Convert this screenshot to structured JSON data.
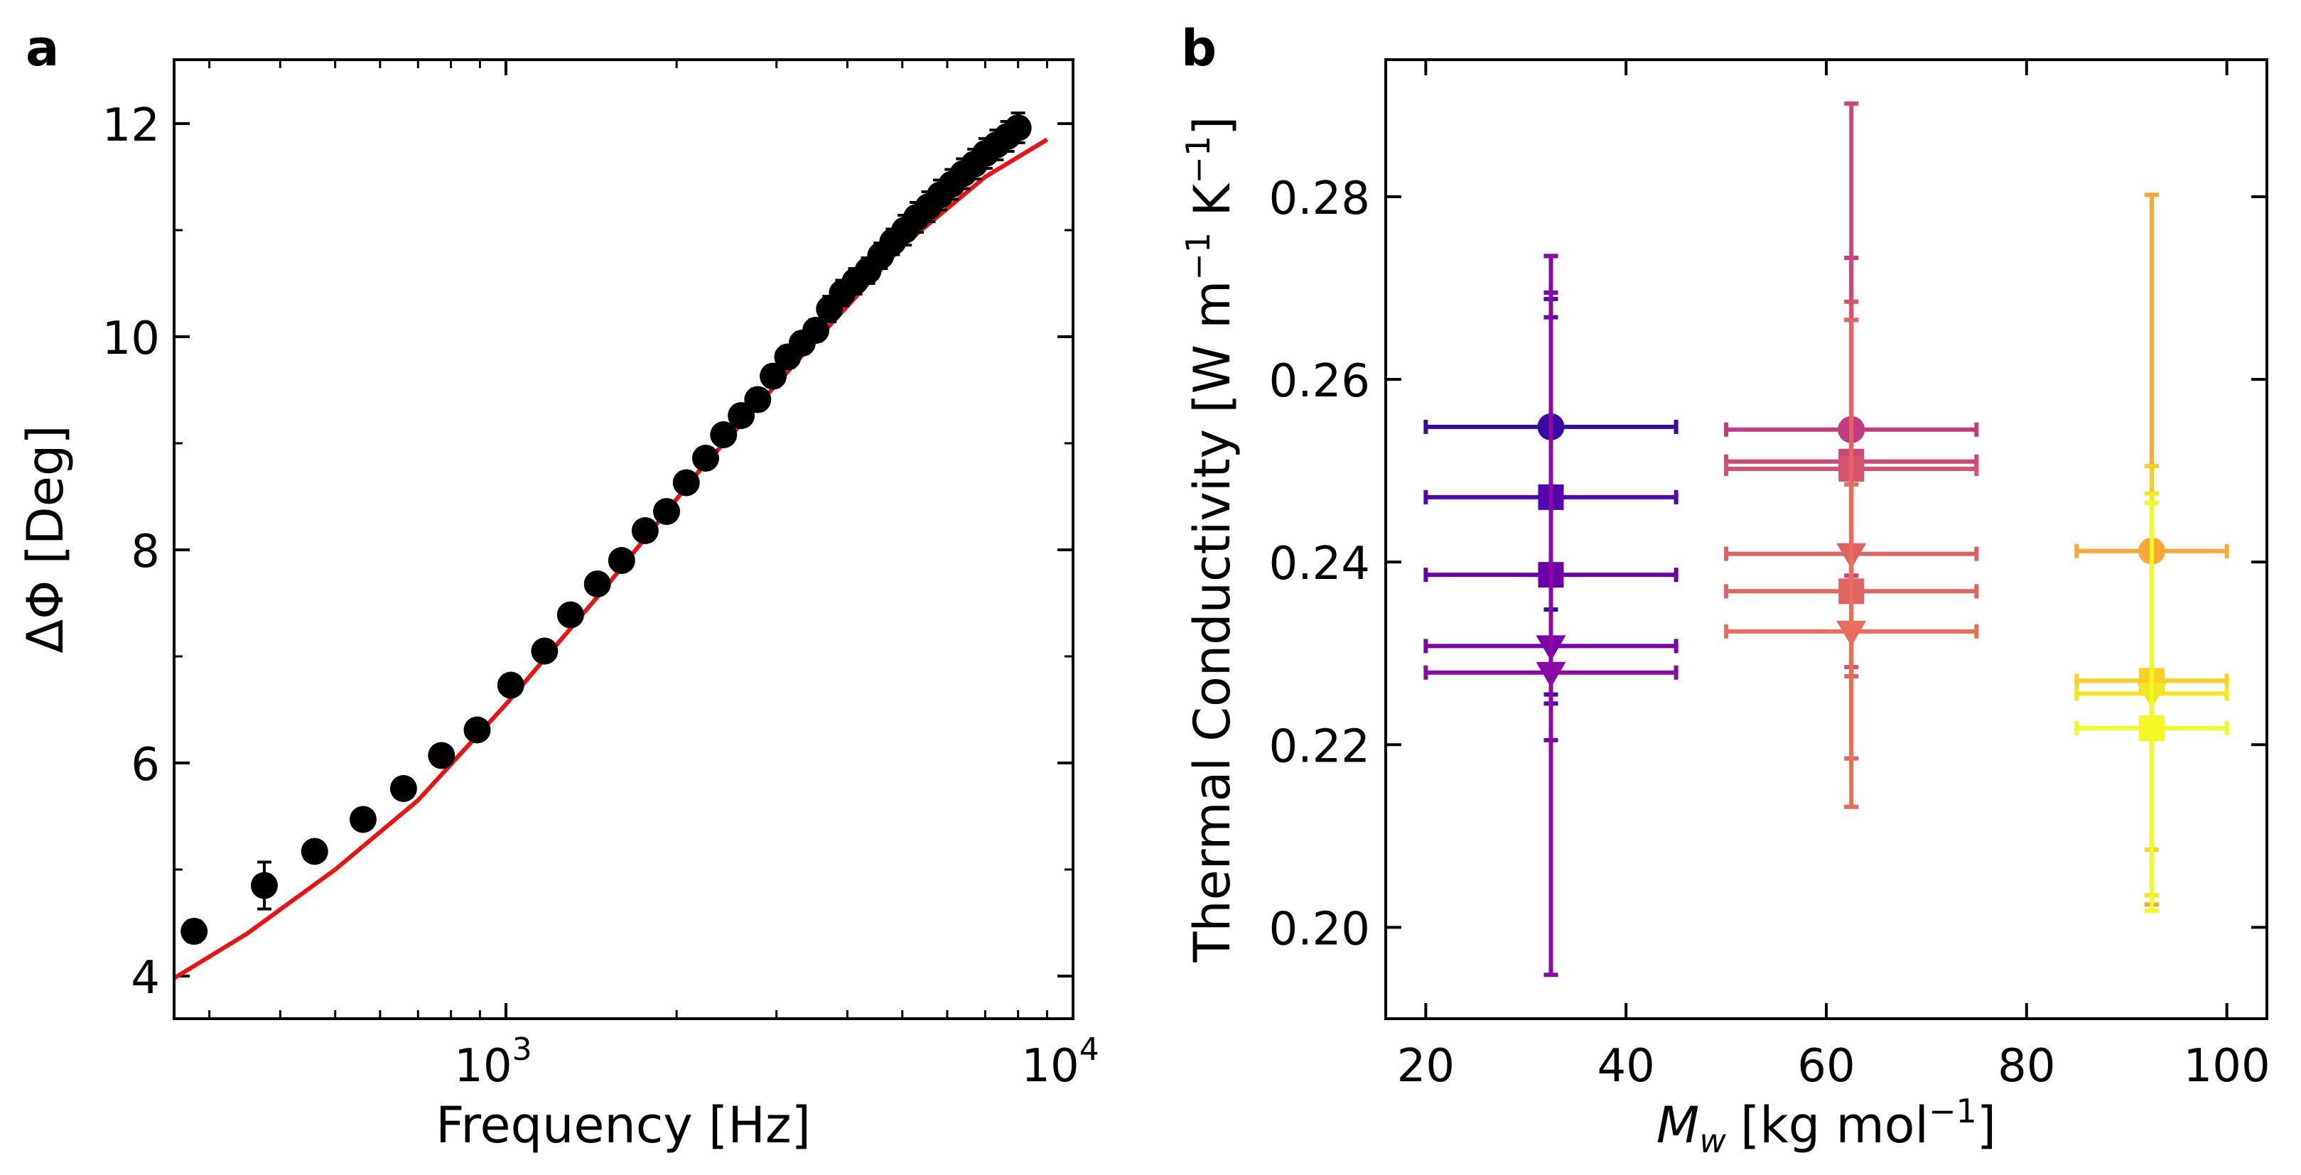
{
  "panels": [
    {
      "letter": "a",
      "chart_data": {
        "type": "scatter",
        "x_scale": "log",
        "title": "",
        "xlabel": "Frequency [Hz]",
        "ylabel": "ΔΦ [Deg]",
        "xlim": [
          260,
          10000
        ],
        "ylim": [
          3.6,
          12.6
        ],
        "x_ticks": [
          {
            "value": 1000,
            "base": "10",
            "exp": "3"
          },
          {
            "value": 10000,
            "base": "10",
            "exp": "4"
          }
        ],
        "y_ticks": [
          {
            "value": 4,
            "label": "4"
          },
          {
            "value": 6,
            "label": "6"
          },
          {
            "value": 8,
            "label": "8"
          },
          {
            "value": 10,
            "label": "10"
          },
          {
            "value": 12,
            "label": "12"
          }
        ],
        "series": [
          {
            "name": "measured",
            "marker": "circle",
            "color": "#000000",
            "x": [
              282,
              375,
              460,
              560,
              660,
              770,
              890,
              1020,
              1170,
              1300,
              1450,
              1600,
              1760,
              1920,
              2080,
              2250,
              2420,
              2600,
              2780,
              2960,
              3140,
              3330,
              3520,
              3720,
              3920,
              4130,
              4350,
              4580,
              4810,
              5050,
              5300,
              5560,
              5830,
              6110,
              6400,
              6700,
              7010,
              7330,
              7660,
              8000
            ],
            "y": [
              4.42,
              4.85,
              5.17,
              5.47,
              5.76,
              6.07,
              6.31,
              6.73,
              7.05,
              7.39,
              7.68,
              7.9,
              8.18,
              8.36,
              8.63,
              8.86,
              9.08,
              9.26,
              9.41,
              9.63,
              9.81,
              9.94,
              10.06,
              10.26,
              10.41,
              10.52,
              10.62,
              10.76,
              10.89,
              11.0,
              11.12,
              11.22,
              11.33,
              11.43,
              11.53,
              11.62,
              11.72,
              11.8,
              11.88,
              11.96
            ],
            "y_err": [
              0.1,
              0.22,
              0.08,
              0.08,
              0.08,
              0.08,
              0.08,
              0.08,
              0.08,
              0.08,
              0.08,
              0.08,
              0.08,
              0.08,
              0.08,
              0.08,
              0.08,
              0.08,
              0.1,
              0.1,
              0.1,
              0.1,
              0.1,
              0.12,
              0.12,
              0.12,
              0.12,
              0.12,
              0.12,
              0.14,
              0.14,
              0.14,
              0.14,
              0.14,
              0.14,
              0.14,
              0.14,
              0.14,
              0.14,
              0.14
            ]
          },
          {
            "name": "fit",
            "type": "line",
            "color": "#ee1111",
            "x": [
              260,
              350,
              500,
              700,
              1000,
              1500,
              2200,
              3300,
              5000,
              7000,
              9000
            ],
            "y": [
              3.98,
              4.4,
              5.0,
              5.65,
              6.55,
              7.65,
              8.75,
              9.8,
              10.85,
              11.5,
              11.85
            ]
          }
        ]
      }
    },
    {
      "letter": "b",
      "chart_data": {
        "type": "scatter",
        "title": "",
        "xlabel": {
          "symbol": "M",
          "sub": "w",
          "rest": "[kg mol",
          "sup": "−1",
          "close": "]"
        },
        "ylabel": {
          "main": "Thermal Conductivity [W m",
          "sup1": "−1",
          "mid": " K",
          "sup2": "−1",
          "close": "]"
        },
        "xlim": [
          16,
          104
        ],
        "ylim": [
          0.19,
          0.295
        ],
        "x_ticks": [
          {
            "value": 20,
            "label": "20"
          },
          {
            "value": 40,
            "label": "40"
          },
          {
            "value": 60,
            "label": "60"
          },
          {
            "value": 80,
            "label": "80"
          },
          {
            "value": 100,
            "label": "100"
          }
        ],
        "y_ticks": [
          {
            "value": 0.2,
            "label": "0.20"
          },
          {
            "value": 0.22,
            "label": "0.22"
          },
          {
            "value": 0.24,
            "label": "0.24"
          },
          {
            "value": 0.26,
            "label": "0.26"
          },
          {
            "value": 0.28,
            "label": "0.28"
          }
        ],
        "points": [
          {
            "x": 32.5,
            "y": 0.2548,
            "x_err": [
              20,
              45
            ],
            "y_err": [
              0.2348,
              0.2735
            ],
            "marker": "circle",
            "color": "#3a0aa0"
          },
          {
            "x": 32.5,
            "y": 0.2471,
            "x_err": [
              20,
              45
            ],
            "y_err": [
              0.2255,
              0.2688
            ],
            "marker": "square",
            "color": "#5306b0"
          },
          {
            "x": 32.5,
            "y": 0.2386,
            "x_err": [
              20,
              45
            ],
            "y_err": [
              0.2245,
              0.2668
            ],
            "marker": "square",
            "color": "#6a00a8"
          },
          {
            "x": 32.5,
            "y": 0.2308,
            "x_err": [
              20,
              45
            ],
            "y_err": [
              0.2205,
              0.2695
            ],
            "marker": "triangle-down",
            "color": "#7b02a8"
          },
          {
            "x": 32.5,
            "y": 0.2279,
            "x_err": [
              20,
              45
            ],
            "y_err": [
              0.1948,
              0.2735
            ],
            "marker": "triangle-down",
            "color": "#8a0aa5"
          },
          {
            "x": 62.5,
            "y": 0.2545,
            "x_err": [
              50,
              75
            ],
            "y_err": [
              0.2385,
              0.2733
            ],
            "marker": "circle",
            "color": "#c23b80"
          },
          {
            "x": 62.5,
            "y": 0.251,
            "x_err": [
              50,
              75
            ],
            "y_err": [
              0.2385,
              0.2902
            ],
            "marker": "square",
            "color": "#cc4778"
          },
          {
            "x": 62.5,
            "y": 0.2502,
            "x_err": [
              50,
              75
            ],
            "y_err": [
              0.2285,
              0.2685
            ],
            "marker": "square",
            "color": "#d5536f"
          },
          {
            "x": 62.5,
            "y": 0.2409,
            "x_err": [
              50,
              75
            ],
            "y_err": [
              0.2275,
              0.2665
            ],
            "marker": "triangle-down",
            "color": "#df6263"
          },
          {
            "x": 62.5,
            "y": 0.2368,
            "x_err": [
              50,
              75
            ],
            "y_err": [
              0.2185,
              0.2665
            ],
            "marker": "square",
            "color": "#e16462"
          },
          {
            "x": 62.5,
            "y": 0.2324,
            "x_err": [
              50,
              75
            ],
            "y_err": [
              0.2132,
              0.2485
            ],
            "marker": "triangle-down",
            "color": "#e76f5a"
          },
          {
            "x": 92.5,
            "y": 0.2412,
            "x_err": [
              85,
              100
            ],
            "y_err": [
              0.2025,
              0.2802
            ],
            "marker": "circle",
            "color": "#fca636"
          },
          {
            "x": 92.5,
            "y": 0.227,
            "x_err": [
              85,
              100
            ],
            "y_err": [
              0.2085,
              0.2505
            ],
            "marker": "square",
            "color": "#fcce25"
          },
          {
            "x": 92.5,
            "y": 0.2256,
            "x_err": [
              85,
              100
            ],
            "y_err": [
              0.2035,
              0.2475
            ],
            "marker": "triangle-down",
            "color": "#f4e61e"
          },
          {
            "x": 92.5,
            "y": 0.2218,
            "x_err": [
              85,
              100
            ],
            "y_err": [
              0.2018,
              0.2465
            ],
            "marker": "square",
            "color": "#f0f921"
          }
        ]
      }
    }
  ]
}
